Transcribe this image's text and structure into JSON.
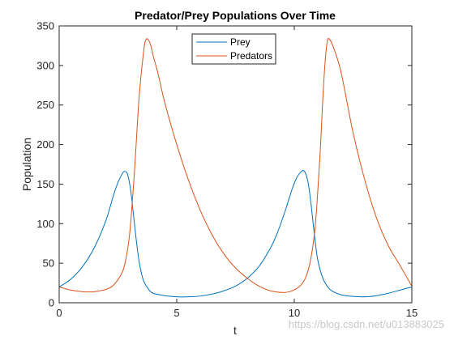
{
  "watermark": "https://blog.csdn.net/u013883025",
  "chart_data": {
    "type": "line",
    "title": "Predator/Prey Populations Over Time",
    "xlabel": "t",
    "ylabel": "Population",
    "xlim": [
      0,
      15
    ],
    "ylim": [
      0,
      350
    ],
    "xticks": [
      0,
      5,
      10,
      15
    ],
    "yticks": [
      0,
      50,
      100,
      150,
      200,
      250,
      300,
      350
    ],
    "grid": false,
    "legend_position": "top-center",
    "series": [
      {
        "name": "Prey",
        "color": "#0072BD",
        "x": [
          0,
          0.5,
          1,
          1.5,
          2,
          2.3,
          2.5,
          2.7,
          2.8,
          2.9,
          3.0,
          3.1,
          3.2,
          3.3,
          3.4,
          3.5,
          3.6,
          3.8,
          4.0,
          4.5,
          5.0,
          5.5,
          6.0,
          6.5,
          7.0,
          7.5,
          8.0,
          8.5,
          9.0,
          9.3,
          9.6,
          9.9,
          10.1,
          10.3,
          10.4,
          10.5,
          10.6,
          10.7,
          10.8,
          10.9,
          11.0,
          11.2,
          11.4,
          11.6,
          12.0,
          12.5,
          13.0,
          13.5,
          14.0,
          14.5,
          15.0
        ],
        "y": [
          20,
          30,
          46,
          70,
          105,
          135,
          152,
          164,
          166,
          163,
          150,
          128,
          100,
          74,
          52,
          37,
          27,
          17,
          12,
          9,
          7.5,
          7.5,
          8.5,
          11,
          15,
          21,
          31,
          46,
          70,
          90,
          115,
          143,
          158,
          166,
          167,
          162,
          150,
          128,
          101,
          75,
          54,
          32,
          21,
          15,
          10,
          8,
          7.5,
          9,
          12,
          16,
          20
        ]
      },
      {
        "name": "Predators",
        "color": "#D95319",
        "x": [
          0,
          0.5,
          1,
          1.5,
          2,
          2.3,
          2.6,
          2.8,
          3.0,
          3.2,
          3.4,
          3.6,
          3.7,
          3.8,
          3.9,
          4.0,
          4.2,
          4.5,
          5.0,
          5.5,
          6.0,
          6.5,
          7.0,
          7.5,
          8.0,
          8.5,
          9.0,
          9.5,
          9.8,
          10.1,
          10.3,
          10.5,
          10.7,
          10.9,
          11.1,
          11.2,
          11.3,
          11.4,
          11.5,
          11.7,
          12.0,
          12.5,
          13.0,
          13.5,
          14.0,
          14.5,
          15.0
        ],
        "y": [
          20,
          16,
          14,
          14,
          17,
          22,
          34,
          50,
          88,
          165,
          260,
          320,
          333,
          332,
          325,
          312,
          290,
          252,
          200,
          155,
          117,
          86,
          62,
          44,
          31,
          21,
          15,
          13,
          14,
          18,
          23,
          33,
          55,
          100,
          190,
          250,
          300,
          330,
          333,
          320,
          290,
          215,
          155,
          107,
          72,
          47,
          21
        ]
      }
    ]
  }
}
